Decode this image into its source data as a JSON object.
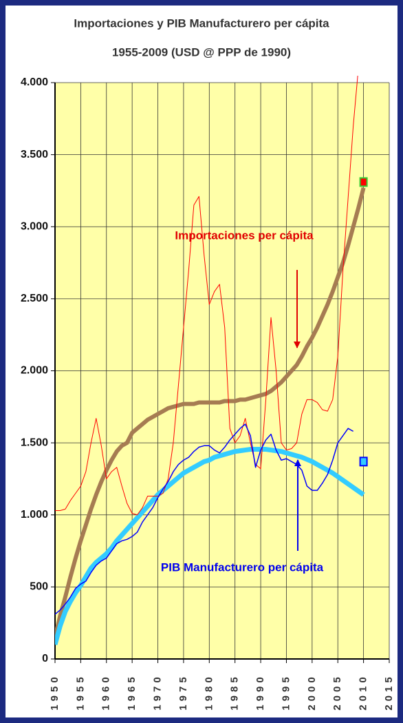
{
  "chart_data": {
    "type": "line",
    "title": "Importaciones y PIB Manufacturero per cápita",
    "subtitle": "1955-2009 (USD @ PPP de 1990)",
    "annotations": [
      "Importaciones per cápita",
      "PIB Manufacturero per cápita"
    ],
    "x": [
      1950,
      1951,
      1952,
      1953,
      1954,
      1955,
      1956,
      1957,
      1958,
      1959,
      1960,
      1961,
      1962,
      1963,
      1964,
      1965,
      1966,
      1967,
      1968,
      1969,
      1970,
      1971,
      1972,
      1973,
      1974,
      1975,
      1976,
      1977,
      1978,
      1979,
      1980,
      1981,
      1982,
      1983,
      1984,
      1985,
      1986,
      1987,
      1988,
      1989,
      1990,
      1991,
      1992,
      1993,
      1994,
      1995,
      1996,
      1997,
      1998,
      1999,
      2000,
      2001,
      2002,
      2003,
      2004,
      2005,
      2006,
      2007,
      2008,
      2009,
      2010
    ],
    "series": [
      {
        "color": "#a67c52",
        "width": 6,
        "values": [
          150,
          300,
          430,
          570,
          700,
          820,
          930,
          1040,
          1140,
          1230,
          1310,
          1380,
          1440,
          1480,
          1500,
          1570,
          1600,
          1630,
          1660,
          1680,
          1700,
          1720,
          1740,
          1750,
          1760,
          1770,
          1770,
          1770,
          1780,
          1780,
          1780,
          1780,
          1780,
          1790,
          1790,
          1790,
          1800,
          1800,
          1810,
          1820,
          1830,
          1840,
          1860,
          1890,
          1920,
          1960,
          2000,
          2040,
          2100,
          2170,
          2230,
          2300,
          2380,
          2460,
          2550,
          2650,
          2750,
          2870,
          3000,
          3130,
          3270
        ]
      },
      {
        "color": "#33ccff",
        "width": 7,
        "values": [
          100,
          230,
          330,
          400,
          460,
          510,
          570,
          630,
          670,
          700,
          730,
          770,
          820,
          860,
          900,
          940,
          980,
          1020,
          1060,
          1100,
          1140,
          1170,
          1200,
          1230,
          1260,
          1290,
          1310,
          1330,
          1350,
          1370,
          1380,
          1400,
          1410,
          1420,
          1430,
          1440,
          1445,
          1450,
          1455,
          1455,
          1455,
          1455,
          1450,
          1445,
          1440,
          1430,
          1420,
          1410,
          1400,
          1385,
          1370,
          1350,
          1330,
          1310,
          1290,
          1265,
          1240,
          1215,
          1190,
          1165,
          1140
        ]
      },
      {
        "color": "#ff0000",
        "width": 1,
        "values": [
          1030,
          1030,
          1040,
          1100,
          1150,
          1200,
          1300,
          1500,
          1670,
          1480,
          1250,
          1300,
          1330,
          1200,
          1080,
          1010,
          1000,
          1050,
          1130,
          1130,
          1130,
          1150,
          1250,
          1500,
          1900,
          2300,
          2700,
          3150,
          3210,
          2800,
          2460,
          2550,
          2600,
          2300,
          1600,
          1500,
          1550,
          1670,
          1500,
          1350,
          1320,
          1800,
          2370,
          2000,
          1500,
          1450,
          1460,
          1500,
          1700,
          1800,
          1800,
          1780,
          1730,
          1720,
          1800,
          2100,
          2700,
          3200,
          3700,
          4100,
          null
        ]
      },
      {
        "color": "#0000ff",
        "width": 1.5,
        "values": [
          310,
          340,
          380,
          430,
          490,
          520,
          540,
          600,
          650,
          680,
          700,
          750,
          800,
          820,
          830,
          850,
          880,
          950,
          1000,
          1050,
          1120,
          1180,
          1230,
          1300,
          1350,
          1380,
          1400,
          1440,
          1470,
          1480,
          1480,
          1450,
          1430,
          1470,
          1520,
          1560,
          1600,
          1630,
          1550,
          1330,
          1450,
          1520,
          1560,
          1450,
          1380,
          1390,
          1370,
          1350,
          1310,
          1200,
          1170,
          1170,
          1220,
          1280,
          1380,
          1500,
          1550,
          1600,
          1580,
          null,
          null
        ]
      },
      {
        "color": "#ff0000",
        "edge": "#33cc33",
        "marker": "square",
        "values": [
          null,
          null,
          null,
          null,
          null,
          null,
          null,
          null,
          null,
          null,
          null,
          null,
          null,
          null,
          null,
          null,
          null,
          null,
          null,
          null,
          null,
          null,
          null,
          null,
          null,
          null,
          null,
          null,
          null,
          null,
          null,
          null,
          null,
          null,
          null,
          null,
          null,
          null,
          null,
          null,
          null,
          null,
          null,
          null,
          null,
          null,
          null,
          null,
          null,
          null,
          null,
          null,
          null,
          null,
          null,
          null,
          null,
          null,
          null,
          null,
          3310
        ]
      },
      {
        "color": "#33ccff",
        "edge": "#0000ff",
        "marker": "square",
        "values": [
          null,
          null,
          null,
          null,
          null,
          null,
          null,
          null,
          null,
          null,
          null,
          null,
          null,
          null,
          null,
          null,
          null,
          null,
          null,
          null,
          null,
          null,
          null,
          null,
          null,
          null,
          null,
          null,
          null,
          null,
          null,
          null,
          null,
          null,
          null,
          null,
          null,
          null,
          null,
          null,
          null,
          null,
          null,
          null,
          null,
          null,
          null,
          null,
          null,
          null,
          null,
          null,
          null,
          null,
          null,
          null,
          null,
          null,
          null,
          null,
          1370
        ]
      }
    ],
    "xlim": [
      1950,
      2015
    ],
    "xticks": [
      1950,
      1955,
      1960,
      1965,
      1970,
      1975,
      1980,
      1985,
      1990,
      1995,
      2000,
      2005,
      2010,
      2015
    ],
    "ylim": [
      0,
      4000
    ],
    "yticks": [
      0,
      500,
      {
        "value": 1000,
        "label": "1.000"
      },
      {
        "value": 1500,
        "label": "1.500"
      },
      {
        "value": 2000,
        "label": "2.000"
      },
      {
        "value": 2500,
        "label": "2.500"
      },
      {
        "value": 3000,
        "label": "3.000"
      },
      {
        "value": 3500,
        "label": "3.500"
      },
      {
        "value": 4000,
        "label": "4.000"
      }
    ],
    "grid": true,
    "plot_background": "#ffffa8"
  }
}
